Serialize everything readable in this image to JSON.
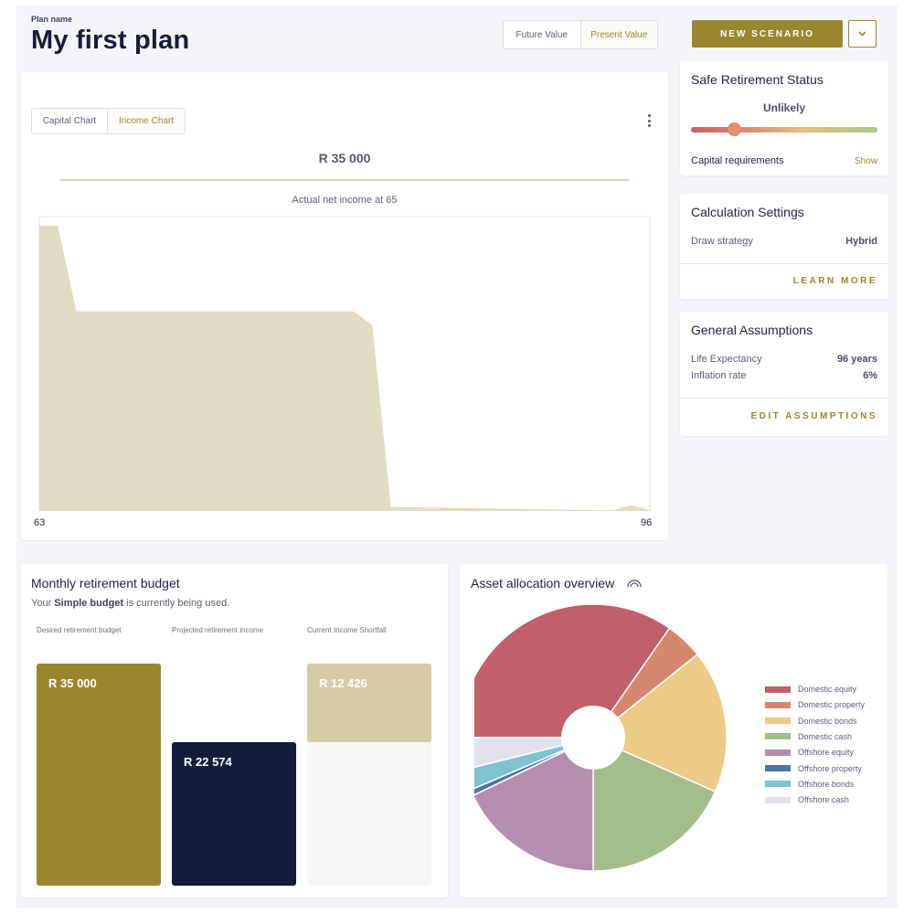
{
  "header": {
    "plan_label": "Plan name",
    "plan_title": "My first plan",
    "value_toggle": [
      "Future Value",
      "Present Value"
    ],
    "new_scenario_label": "NEW SCENARIO"
  },
  "income_chart": {
    "tabs": [
      "Capital Chart",
      "Income Chart"
    ],
    "amount": "R 35 000",
    "caption": "Actual net income at 65",
    "chart_data": {
      "type": "area",
      "x_start_label": "63",
      "x_end_label": "96",
      "xlim": [
        63,
        96
      ],
      "x": [
        63,
        64,
        65,
        66,
        67,
        68,
        69,
        70,
        71,
        72,
        73,
        74,
        75,
        76,
        77,
        78,
        79,
        80,
        81,
        82,
        83,
        84,
        85,
        86,
        87,
        88,
        89,
        90,
        91,
        92,
        93,
        94,
        95,
        96
      ],
      "values": [
        100,
        100,
        70,
        70,
        70,
        70,
        70,
        70,
        70,
        70,
        70,
        70,
        70,
        70,
        70,
        70,
        70,
        70,
        65,
        1.4,
        1.3,
        1.2,
        1.1,
        1.0,
        0.9,
        0.8,
        0.7,
        0.6,
        0.5,
        0.4,
        0.3,
        0.3,
        2.0,
        0.3
      ],
      "color": "#e0dcc4"
    }
  },
  "safe_status": {
    "title": "Safe Retirement Status",
    "status": "Unlikely",
    "level": 0.23,
    "capital_label": "Capital requirements",
    "show_label": "Show"
  },
  "calc_settings": {
    "title": "Calculation Settings",
    "draw_label": "Draw strategy",
    "draw_value": "Hybrid",
    "learn_more": "LEARN MORE"
  },
  "assumptions": {
    "title": "General Assumptions",
    "life_label": "Life Expectancy",
    "life_value": "96 years",
    "inflation_label": "Inflation rate",
    "inflation_value": "6%",
    "edit_label": "EDIT ASSUMPTIONS"
  },
  "budget": {
    "title": "Monthly retirement budget",
    "note_prefix": "Your ",
    "note_bold": "Simple budget",
    "note_suffix": " is currently being used.",
    "columns": [
      {
        "label": "Desired retirement budget",
        "value": "R 35 000",
        "amount": 35000,
        "color": "#9b8630"
      },
      {
        "label": "Projected retirement income",
        "value": "R 22 574",
        "amount": 22574,
        "color": "#141c3c"
      },
      {
        "label": "Current Income Shortfall",
        "value": "R 12 426",
        "amount": 12426,
        "color": "#d4cca5"
      }
    ]
  },
  "allocation": {
    "title": "Asset allocation overview",
    "chart_data": {
      "type": "pie",
      "labels": [
        "Domestic equity",
        "Domestic property",
        "Domestic bonds",
        "Domestic cash",
        "Offshore equity",
        "Offshore property",
        "Offshore bonds",
        "Offshore cash"
      ],
      "values": [
        34,
        4.5,
        17,
        18,
        17.5,
        0.7,
        2.5,
        3.8
      ],
      "colors": [
        "#c0606a",
        "#d5876e",
        "#ebcb86",
        "#a2bd8a",
        "#b58daf",
        "#4f73a5",
        "#80c2cf",
        "#dfe3ec"
      ]
    }
  }
}
